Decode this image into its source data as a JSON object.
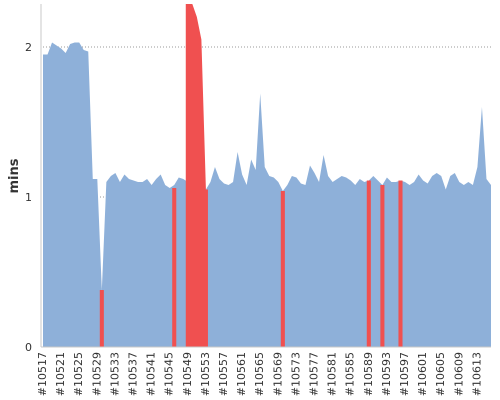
{
  "chart_data": {
    "type": "area",
    "title": "",
    "xlabel": "",
    "ylabel": "mins",
    "ylim": [
      0,
      2.3
    ],
    "yticks": [
      0,
      1,
      2
    ],
    "grid": "horizontal dotted",
    "legend": "none",
    "x_tick_labels": [
      "#10517",
      "#10521",
      "#10525",
      "#10529",
      "#10533",
      "#10537",
      "#10541",
      "#10545",
      "#10549",
      "#10553",
      "#10557",
      "#10561",
      "#10565",
      "#10569",
      "#10573",
      "#10577",
      "#10581",
      "#10585",
      "#10589",
      "#10593",
      "#10597",
      "#10601",
      "#10605",
      "#10609",
      "#10613"
    ],
    "x_start": 10517,
    "x_end": 10616,
    "series": [
      {
        "color": "#8eb0d9",
        "points": [
          [
            10517,
            1.95
          ],
          [
            10518,
            1.95
          ],
          [
            10519,
            2.03
          ],
          [
            10520,
            2.01
          ],
          [
            10521,
            1.99
          ],
          [
            10522,
            1.96
          ],
          [
            10523,
            2.02
          ],
          [
            10524,
            2.03
          ],
          [
            10525,
            2.03
          ],
          [
            10526,
            1.98
          ],
          [
            10527,
            1.97
          ],
          [
            10528,
            1.12
          ],
          [
            10529,
            1.12
          ],
          [
            10530,
            0.38
          ],
          [
            10531,
            1.1
          ],
          [
            10532,
            1.14
          ],
          [
            10533,
            1.16
          ],
          [
            10534,
            1.1
          ],
          [
            10535,
            1.15
          ],
          [
            10536,
            1.12
          ],
          [
            10537,
            1.11
          ],
          [
            10538,
            1.1
          ],
          [
            10539,
            1.1
          ],
          [
            10540,
            1.12
          ],
          [
            10541,
            1.08
          ],
          [
            10542,
            1.12
          ],
          [
            10543,
            1.15
          ],
          [
            10544,
            1.08
          ],
          [
            10545,
            1.06
          ],
          [
            10546,
            1.08
          ],
          [
            10547,
            1.13
          ],
          [
            10548,
            1.12
          ],
          [
            10549,
            1.1
          ],
          [
            10550,
            1.15
          ],
          [
            10551,
            1.12
          ],
          [
            10552,
            1.08
          ],
          [
            10553,
            1.05
          ],
          [
            10554,
            1.1
          ],
          [
            10555,
            1.2
          ],
          [
            10556,
            1.12
          ],
          [
            10557,
            1.09
          ],
          [
            10558,
            1.08
          ],
          [
            10559,
            1.1
          ],
          [
            10560,
            1.3
          ],
          [
            10561,
            1.15
          ],
          [
            10562,
            1.08
          ],
          [
            10563,
            1.25
          ],
          [
            10564,
            1.18
          ],
          [
            10565,
            1.69
          ],
          [
            10566,
            1.2
          ],
          [
            10567,
            1.14
          ],
          [
            10568,
            1.13
          ],
          [
            10569,
            1.1
          ],
          [
            10570,
            1.04
          ],
          [
            10571,
            1.08
          ],
          [
            10572,
            1.14
          ],
          [
            10573,
            1.13
          ],
          [
            10574,
            1.09
          ],
          [
            10575,
            1.08
          ],
          [
            10576,
            1.21
          ],
          [
            10577,
            1.16
          ],
          [
            10578,
            1.1
          ],
          [
            10579,
            1.28
          ],
          [
            10580,
            1.14
          ],
          [
            10581,
            1.1
          ],
          [
            10582,
            1.12
          ],
          [
            10583,
            1.14
          ],
          [
            10584,
            1.13
          ],
          [
            10585,
            1.11
          ],
          [
            10586,
            1.08
          ],
          [
            10587,
            1.12
          ],
          [
            10588,
            1.1
          ],
          [
            10589,
            1.11
          ],
          [
            10590,
            1.14
          ],
          [
            10591,
            1.11
          ],
          [
            10592,
            1.08
          ],
          [
            10593,
            1.13
          ],
          [
            10594,
            1.1
          ],
          [
            10595,
            1.1
          ],
          [
            10596,
            1.11
          ],
          [
            10597,
            1.1
          ],
          [
            10598,
            1.08
          ],
          [
            10599,
            1.1
          ],
          [
            10600,
            1.15
          ],
          [
            10601,
            1.11
          ],
          [
            10602,
            1.09
          ],
          [
            10603,
            1.14
          ],
          [
            10604,
            1.16
          ],
          [
            10605,
            1.14
          ],
          [
            10606,
            1.05
          ],
          [
            10607,
            1.14
          ],
          [
            10608,
            1.16
          ],
          [
            10609,
            1.1
          ],
          [
            10610,
            1.08
          ],
          [
            10611,
            1.1
          ],
          [
            10612,
            1.08
          ],
          [
            10613,
            1.2
          ],
          [
            10614,
            1.6
          ],
          [
            10615,
            1.12
          ],
          [
            10616,
            1.08
          ]
        ]
      },
      {
        "color": "#f05050",
        "points": [
          [
            10530,
            0.38
          ],
          [
            10546,
            1.06
          ],
          [
            10549,
            2.3
          ],
          [
            10550,
            2.3
          ],
          [
            10551,
            2.2
          ],
          [
            10552,
            2.05
          ],
          [
            10553,
            1.05
          ],
          [
            10570,
            1.04
          ],
          [
            10589,
            1.11
          ],
          [
            10592,
            1.08
          ],
          [
            10596,
            1.11
          ]
        ]
      }
    ]
  }
}
